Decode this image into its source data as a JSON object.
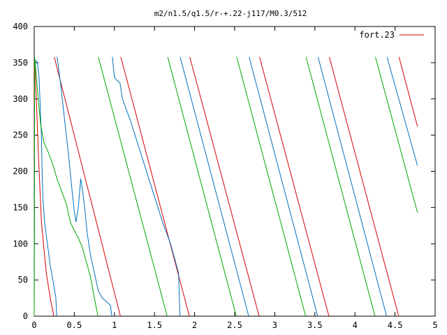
{
  "chart_data": {
    "type": "line",
    "title": "m2/n1.5/q1.5/r-+.22-j117/M0.3/512",
    "xlabel": "",
    "ylabel": "",
    "xlim": [
      0,
      5
    ],
    "ylim": [
      0,
      400
    ],
    "x_ticks": [
      "0",
      "0.5",
      "1",
      "1.5",
      "2",
      "2.5",
      "3",
      "3.5",
      "4",
      "4.5",
      "5"
    ],
    "y_ticks": [
      "0",
      "50",
      "100",
      "150",
      "200",
      "250",
      "300",
      "350",
      "400"
    ],
    "grid": false,
    "legend_position": "top-right",
    "legend": [
      {
        "label": "fort.23",
        "color": "#d40000"
      }
    ],
    "series": [
      {
        "color": "#d40000",
        "segments": [
          [
            [
              0.0,
              0
            ],
            [
              0.003,
              358
            ],
            [
              0.03,
              290
            ],
            [
              0.05,
              230
            ],
            [
              0.09,
              130
            ],
            [
              0.15,
              60
            ],
            [
              0.2,
              25
            ],
            [
              0.245,
              0
            ]
          ],
          [
            [
              0.25,
              358
            ],
            [
              1.075,
              0
            ]
          ],
          [
            [
              1.08,
              358
            ],
            [
              1.935,
              0
            ]
          ],
          [
            [
              1.94,
              358
            ],
            [
              2.805,
              0
            ]
          ],
          [
            [
              2.81,
              358
            ],
            [
              3.675,
              0
            ]
          ],
          [
            [
              3.68,
              358
            ],
            [
              4.545,
              0
            ]
          ],
          [
            [
              4.55,
              358
            ],
            [
              4.78,
              262
            ]
          ]
        ]
      },
      {
        "color": "#0070c0",
        "segments": [
          [
            [
              0.0,
              0
            ],
            [
              0.005,
              355
            ],
            [
              0.04,
              350
            ],
            [
              0.06,
              330
            ],
            [
              0.075,
              290
            ],
            [
              0.09,
              250
            ],
            [
              0.1,
              190
            ],
            [
              0.11,
              160
            ],
            [
              0.13,
              130
            ],
            [
              0.17,
              95
            ],
            [
              0.2,
              70
            ],
            [
              0.24,
              45
            ],
            [
              0.27,
              25
            ],
            [
              0.28,
              0
            ]
          ],
          [
            [
              0.285,
              358
            ],
            [
              0.33,
              320
            ],
            [
              0.38,
              270
            ],
            [
              0.43,
              220
            ],
            [
              0.47,
              175
            ],
            [
              0.5,
              145
            ],
            [
              0.52,
              130
            ],
            [
              0.55,
              150
            ],
            [
              0.58,
              190
            ],
            [
              0.6,
              175
            ],
            [
              0.63,
              150
            ],
            [
              0.66,
              115
            ],
            [
              0.7,
              85
            ],
            [
              0.76,
              55
            ],
            [
              0.8,
              35
            ],
            [
              0.85,
              25
            ],
            [
              0.9,
              20
            ],
            [
              0.95,
              15
            ],
            [
              0.968,
              0
            ]
          ],
          [
            [
              0.975,
              358
            ],
            [
              1.0,
              330
            ],
            [
              1.03,
              326
            ],
            [
              1.07,
              322
            ],
            [
              1.1,
              300
            ],
            [
              1.2,
              270
            ],
            [
              1.3,
              235
            ],
            [
              1.4,
              200
            ],
            [
              1.5,
              165
            ],
            [
              1.6,
              130
            ],
            [
              1.7,
              100
            ],
            [
              1.8,
              60
            ],
            [
              1.818,
              0
            ]
          ],
          [
            [
              1.82,
              358
            ],
            [
              2.675,
              0
            ]
          ],
          [
            [
              2.68,
              358
            ],
            [
              3.535,
              0
            ]
          ],
          [
            [
              3.54,
              358
            ],
            [
              4.395,
              0
            ]
          ],
          [
            [
              4.4,
              358
            ],
            [
              4.78,
              208
            ]
          ]
        ]
      },
      {
        "color": "#00a800",
        "segments": [
          [
            [
              0.0,
              0
            ],
            [
              0.005,
              358
            ],
            [
              0.02,
              340
            ],
            [
              0.05,
              300
            ],
            [
              0.08,
              265
            ],
            [
              0.12,
              240
            ],
            [
              0.18,
              225
            ],
            [
              0.23,
              210
            ],
            [
              0.27,
              195
            ],
            [
              0.3,
              185
            ],
            [
              0.35,
              170
            ],
            [
              0.4,
              155
            ],
            [
              0.45,
              130
            ],
            [
              0.5,
              118
            ],
            [
              0.55,
              108
            ],
            [
              0.6,
              95
            ],
            [
              0.65,
              75
            ],
            [
              0.7,
              55
            ],
            [
              0.75,
              25
            ],
            [
              0.795,
              0
            ]
          ],
          [
            [
              0.8,
              358
            ],
            [
              1.658,
              0
            ]
          ],
          [
            [
              1.665,
              358
            ],
            [
              2.52,
              0
            ]
          ],
          [
            [
              2.525,
              358
            ],
            [
              3.385,
              0
            ]
          ],
          [
            [
              3.39,
              358
            ],
            [
              4.25,
              0
            ]
          ],
          [
            [
              4.255,
              358
            ],
            [
              4.78,
              143
            ]
          ]
        ]
      }
    ]
  }
}
